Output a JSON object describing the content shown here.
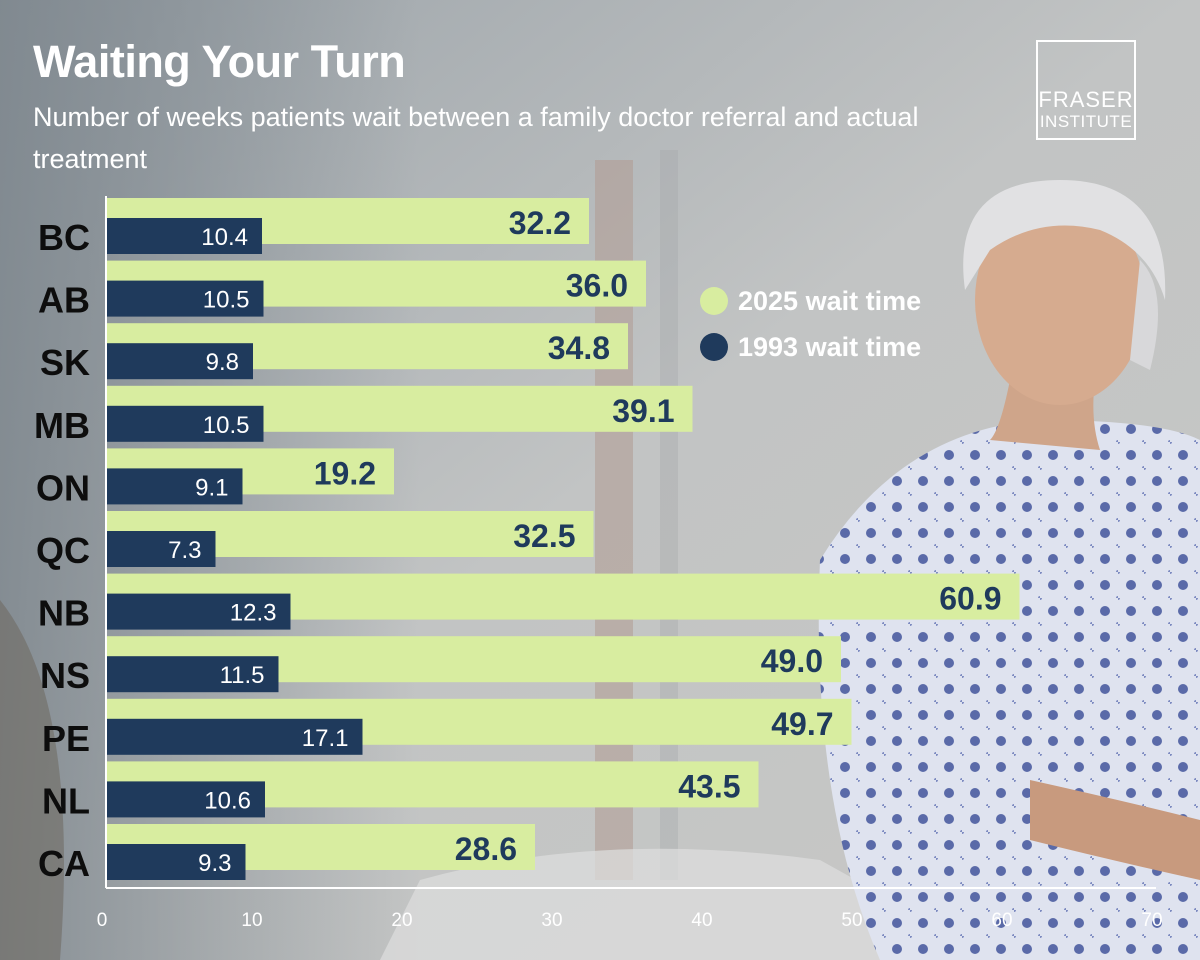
{
  "header": {
    "title": "Waiting Your Turn",
    "subtitle": "Number of weeks patients wait between a family doctor referral and actual treatment"
  },
  "logo": {
    "line1": "FRASER",
    "line2": "INSTITUTE"
  },
  "colors": {
    "bar_2025": "#d8eda0",
    "bar_1993": "#1f3a5c",
    "title_text": "#ffffff",
    "category_text": "#0d0d0d",
    "value_2025_text": "#1f3a5c"
  },
  "chart_data": {
    "type": "bar",
    "orientation": "horizontal",
    "title": "Waiting Your Turn",
    "subtitle": "Number of weeks patients wait between a family doctor referral and actual treatment",
    "categories": [
      "BC",
      "AB",
      "SK",
      "MB",
      "ON",
      "QC",
      "NB",
      "NS",
      "PE",
      "NL",
      "CA"
    ],
    "series": [
      {
        "name": "2025 wait time",
        "values": [
          32.2,
          36.0,
          34.8,
          39.1,
          19.2,
          32.5,
          60.9,
          49.0,
          49.7,
          43.5,
          28.6
        ]
      },
      {
        "name": "1993 wait time",
        "values": [
          10.4,
          10.5,
          9.8,
          10.5,
          9.1,
          7.3,
          12.3,
          11.5,
          17.1,
          10.6,
          9.3
        ]
      }
    ],
    "value_labels_2025": [
      "32.2",
      "36.0",
      "34.8",
      "39.1",
      "19.2",
      "32.5",
      "60.9",
      "49.0",
      "49.7",
      "43.5",
      "28.6"
    ],
    "value_labels_1993": [
      "10.4",
      "10.5",
      "9.8",
      "10.5",
      "9.1",
      "7.3",
      "12.3",
      "11.5",
      "17.1",
      "10.6",
      "9.3"
    ],
    "xlim": [
      0,
      70
    ],
    "xticks": [
      "0",
      "10",
      "20",
      "30",
      "40",
      "50",
      "60",
      "70"
    ],
    "xlabel": "",
    "ylabel": "",
    "grid": false,
    "legend_position": "right"
  }
}
